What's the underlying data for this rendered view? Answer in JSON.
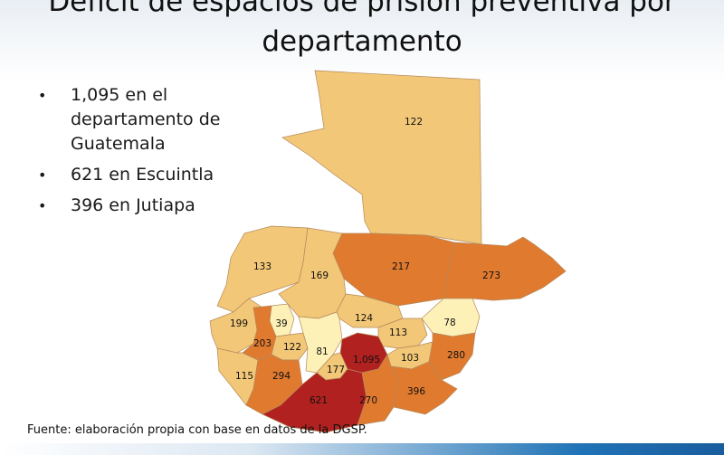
{
  "slide": {
    "title": "Déficit de espacios de prisión preventiva por departamento",
    "bullets": [
      "1,095 en el departamento de Guatemala",
      "621 en Escuintla",
      "396 en Jutiapa"
    ],
    "source": "Fuente: elaboración propia con base en datos de la DGSP."
  },
  "map": {
    "colors": {
      "lightest": "#fdf1b8",
      "light": "#f2c777",
      "medium": "#e07a2f",
      "dark": "#b0211f"
    },
    "departments": [
      {
        "label": "122",
        "tier": "light"
      },
      {
        "label": "217",
        "tier": "medium"
      },
      {
        "label": "273",
        "tier": "medium"
      },
      {
        "label": "133",
        "tier": "light"
      },
      {
        "label": "169",
        "tier": "light"
      },
      {
        "label": "199",
        "tier": "light"
      },
      {
        "label": "39",
        "tier": "lightest"
      },
      {
        "label": "124",
        "tier": "light"
      },
      {
        "label": "78",
        "tier": "lightest"
      },
      {
        "label": "113",
        "tier": "light"
      },
      {
        "label": "203",
        "tier": "medium"
      },
      {
        "label": "122",
        "tier": "light"
      },
      {
        "label": "81",
        "tier": "lightest"
      },
      {
        "label": "1,095",
        "tier": "dark"
      },
      {
        "label": "103",
        "tier": "light"
      },
      {
        "label": "280",
        "tier": "medium"
      },
      {
        "label": "115",
        "tier": "light"
      },
      {
        "label": "294",
        "tier": "medium"
      },
      {
        "label": "177",
        "tier": "light"
      },
      {
        "label": "621",
        "tier": "dark"
      },
      {
        "label": "270",
        "tier": "medium"
      },
      {
        "label": "396",
        "tier": "medium"
      }
    ]
  }
}
